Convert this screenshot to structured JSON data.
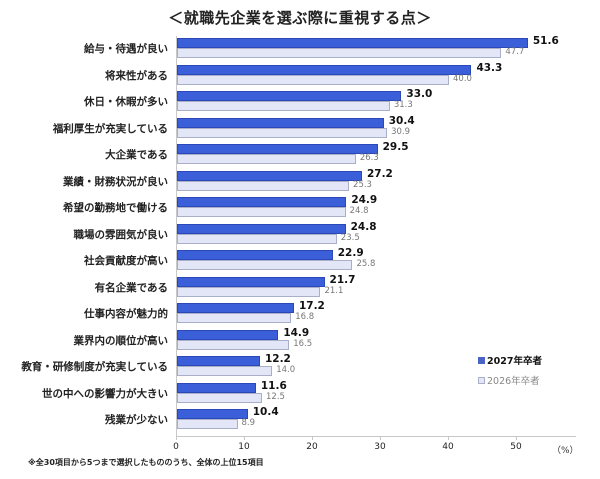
{
  "title": "＜就職先企業を選ぶ際に重視する点＞",
  "footnote": "※全30項目から5つまで選択したもののうち、全体の上位15項目",
  "legend": {
    "series_2027": "2027年卒者",
    "series_2026": "2026年卒者"
  },
  "axis": {
    "ticks": [
      "0",
      "10",
      "20",
      "30",
      "40",
      "50"
    ],
    "unit": "（%）"
  },
  "colors": {
    "series_2027": "#3a5fd9",
    "series_2026": "#e2e6f7"
  },
  "rows": [
    {
      "label": "給与・待遇が良い",
      "v2027": "51.6",
      "v2026": "47.7"
    },
    {
      "label": "将来性がある",
      "v2027": "43.3",
      "v2026": "40.0"
    },
    {
      "label": "休日・休暇が多い",
      "v2027": "33.0",
      "v2026": "31.3"
    },
    {
      "label": "福利厚生が充実している",
      "v2027": "30.4",
      "v2026": "30.9"
    },
    {
      "label": "大企業である",
      "v2027": "29.5",
      "v2026": "26.3"
    },
    {
      "label": "業績・財務状況が良い",
      "v2027": "27.2",
      "v2026": "25.3"
    },
    {
      "label": "希望の勤務地で働ける",
      "v2027": "24.9",
      "v2026": "24.8"
    },
    {
      "label": "職場の雰囲気が良い",
      "v2027": "24.8",
      "v2026": "23.5"
    },
    {
      "label": "社会貢献度が高い",
      "v2027": "22.9",
      "v2026": "25.8"
    },
    {
      "label": "有名企業である",
      "v2027": "21.7",
      "v2026": "21.1"
    },
    {
      "label": "仕事内容が魅力的",
      "v2027": "17.2",
      "v2026": "16.8"
    },
    {
      "label": "業界内の順位が高い",
      "v2027": "14.9",
      "v2026": "16.5"
    },
    {
      "label": "教育・研修制度が充実している",
      "v2027": "12.2",
      "v2026": "14.0"
    },
    {
      "label": "世の中への影響力が大きい",
      "v2027": "11.6",
      "v2026": "12.5"
    },
    {
      "label": "残業が少ない",
      "v2027": "10.4",
      "v2026": "8.9"
    }
  ],
  "chart_data": {
    "type": "bar",
    "orientation": "horizontal",
    "title": "＜就職先企業を選ぶ際に重視する点＞",
    "xlabel": "（%）",
    "ylabel": "",
    "xlim": [
      0,
      55
    ],
    "grid": false,
    "legend_position": "right-bottom",
    "categories": [
      "給与・待遇が良い",
      "将来性がある",
      "休日・休暇が多い",
      "福利厚生が充実している",
      "大企業である",
      "業績・財務状況が良い",
      "希望の勤務地で働ける",
      "職場の雰囲気が良い",
      "社会貢献度が高い",
      "有名企業である",
      "仕事内容が魅力的",
      "業界内の順位が高い",
      "教育・研修制度が充実している",
      "世の中への影響力が大きい",
      "残業が少ない"
    ],
    "series": [
      {
        "name": "2027年卒者",
        "values": [
          51.6,
          43.3,
          33.0,
          30.4,
          29.5,
          27.2,
          24.9,
          24.8,
          22.9,
          21.7,
          17.2,
          14.9,
          12.2,
          11.6,
          10.4
        ]
      },
      {
        "name": "2026年卒者",
        "values": [
          47.7,
          40.0,
          31.3,
          30.9,
          26.3,
          25.3,
          24.8,
          23.5,
          25.8,
          21.1,
          16.8,
          16.5,
          14.0,
          12.5,
          8.9
        ]
      }
    ],
    "x_ticks": [
      0,
      10,
      20,
      30,
      40,
      50
    ],
    "annotations": [
      "※全30項目から5つまで選択したもののうち、全体の上位15項目"
    ]
  }
}
